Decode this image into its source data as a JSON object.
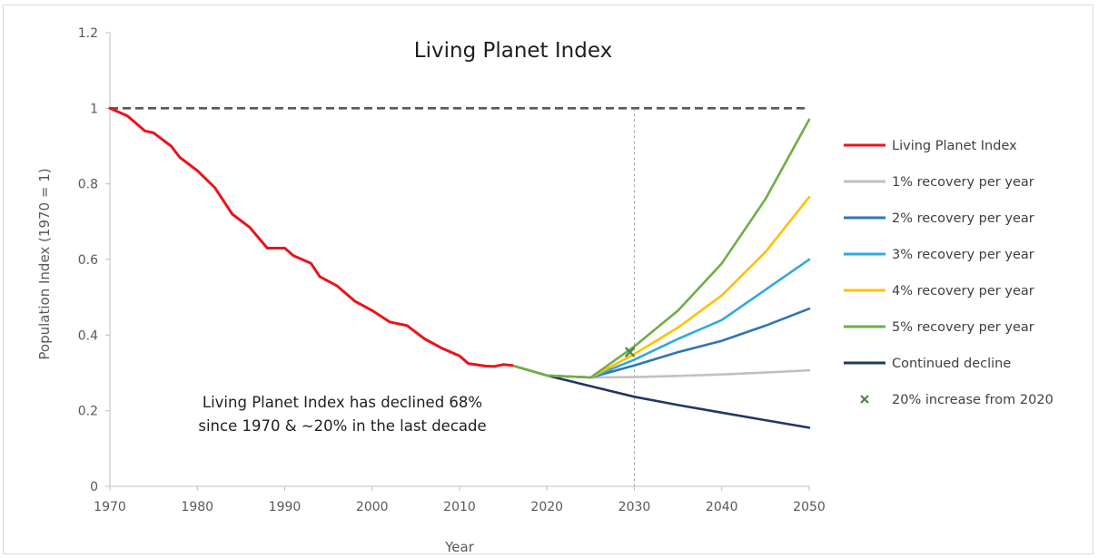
{
  "chart_data": {
    "type": "line",
    "title": "Living Planet Index",
    "xlabel": "Year",
    "ylabel": "Population Index (1970 = 1)",
    "xlim": [
      1970,
      2050
    ],
    "ylim": [
      0,
      1.2
    ],
    "x_ticks": [
      "1970",
      "1980",
      "1990",
      "2000",
      "2010",
      "2020",
      "2030",
      "2040",
      "2050"
    ],
    "y_ticks": [
      "0",
      "0.2",
      "0.4",
      "0.6",
      "0.8",
      "1",
      "1.2"
    ],
    "grid": false,
    "legend_position": "right",
    "reference_lines": [
      {
        "axis": "y",
        "value": 1,
        "style": "dashed",
        "color": "#595959"
      },
      {
        "axis": "x",
        "value": 2030,
        "style": "dotted",
        "color": "#a6a6a6"
      }
    ],
    "annotations": [
      "Living Planet Index has declined 68%",
      "since 1970 & ~20% in the last decade"
    ],
    "series": [
      {
        "name": "Living Planet Index",
        "color": "#e8141a",
        "points": [
          [
            1970,
            1.0
          ],
          [
            1972,
            0.98
          ],
          [
            1974,
            0.94
          ],
          [
            1975,
            0.935
          ],
          [
            1977,
            0.9
          ],
          [
            1978,
            0.87
          ],
          [
            1980,
            0.835
          ],
          [
            1982,
            0.79
          ],
          [
            1984,
            0.72
          ],
          [
            1986,
            0.685
          ],
          [
            1988,
            0.63
          ],
          [
            1990,
            0.63
          ],
          [
            1991,
            0.61
          ],
          [
            1993,
            0.59
          ],
          [
            1994,
            0.555
          ],
          [
            1996,
            0.53
          ],
          [
            1998,
            0.49
          ],
          [
            2000,
            0.465
          ],
          [
            2002,
            0.435
          ],
          [
            2004,
            0.425
          ],
          [
            2006,
            0.39
          ],
          [
            2008,
            0.365
          ],
          [
            2010,
            0.345
          ],
          [
            2011,
            0.325
          ],
          [
            2013,
            0.318
          ],
          [
            2014,
            0.317
          ],
          [
            2015,
            0.322
          ],
          [
            2016,
            0.32
          ]
        ]
      },
      {
        "name": "1% recovery per year",
        "color": "#c0c0c0",
        "points": [
          [
            2016,
            0.32
          ],
          [
            2020,
            0.293
          ],
          [
            2025,
            0.288
          ],
          [
            2030,
            0.289
          ],
          [
            2035,
            0.292
          ],
          [
            2040,
            0.296
          ],
          [
            2045,
            0.301
          ],
          [
            2050,
            0.307
          ]
        ]
      },
      {
        "name": "2% recovery per year",
        "color": "#2e75b6",
        "points": [
          [
            2016,
            0.32
          ],
          [
            2020,
            0.293
          ],
          [
            2025,
            0.288
          ],
          [
            2030,
            0.32
          ],
          [
            2035,
            0.355
          ],
          [
            2040,
            0.385
          ],
          [
            2045,
            0.425
          ],
          [
            2050,
            0.47
          ]
        ]
      },
      {
        "name": "3% recovery per year",
        "color": "#2eaadc",
        "points": [
          [
            2016,
            0.32
          ],
          [
            2020,
            0.293
          ],
          [
            2025,
            0.288
          ],
          [
            2030,
            0.335
          ],
          [
            2035,
            0.39
          ],
          [
            2040,
            0.44
          ],
          [
            2045,
            0.52
          ],
          [
            2050,
            0.6
          ]
        ]
      },
      {
        "name": "4% recovery per year",
        "color": "#ffc000",
        "points": [
          [
            2016,
            0.32
          ],
          [
            2020,
            0.293
          ],
          [
            2025,
            0.288
          ],
          [
            2030,
            0.35
          ],
          [
            2035,
            0.42
          ],
          [
            2040,
            0.505
          ],
          [
            2045,
            0.62
          ],
          [
            2050,
            0.765
          ]
        ]
      },
      {
        "name": "5% recovery per year",
        "color": "#70ad47",
        "points": [
          [
            2016,
            0.32
          ],
          [
            2020,
            0.293
          ],
          [
            2025,
            0.288
          ],
          [
            2030,
            0.37
          ],
          [
            2035,
            0.465
          ],
          [
            2040,
            0.59
          ],
          [
            2045,
            0.76
          ],
          [
            2050,
            0.97
          ]
        ]
      },
      {
        "name": "Continued decline",
        "color": "#1f3864",
        "points": [
          [
            2016,
            0.32
          ],
          [
            2020,
            0.293
          ],
          [
            2025,
            0.265
          ],
          [
            2030,
            0.237
          ],
          [
            2035,
            0.215
          ],
          [
            2040,
            0.195
          ],
          [
            2045,
            0.175
          ],
          [
            2050,
            0.155
          ]
        ]
      },
      {
        "name": "20% increase from 2020",
        "type": "marker",
        "marker": "x",
        "color": "#4e8542",
        "points": [
          [
            2029.5,
            0.355
          ]
        ]
      }
    ]
  }
}
